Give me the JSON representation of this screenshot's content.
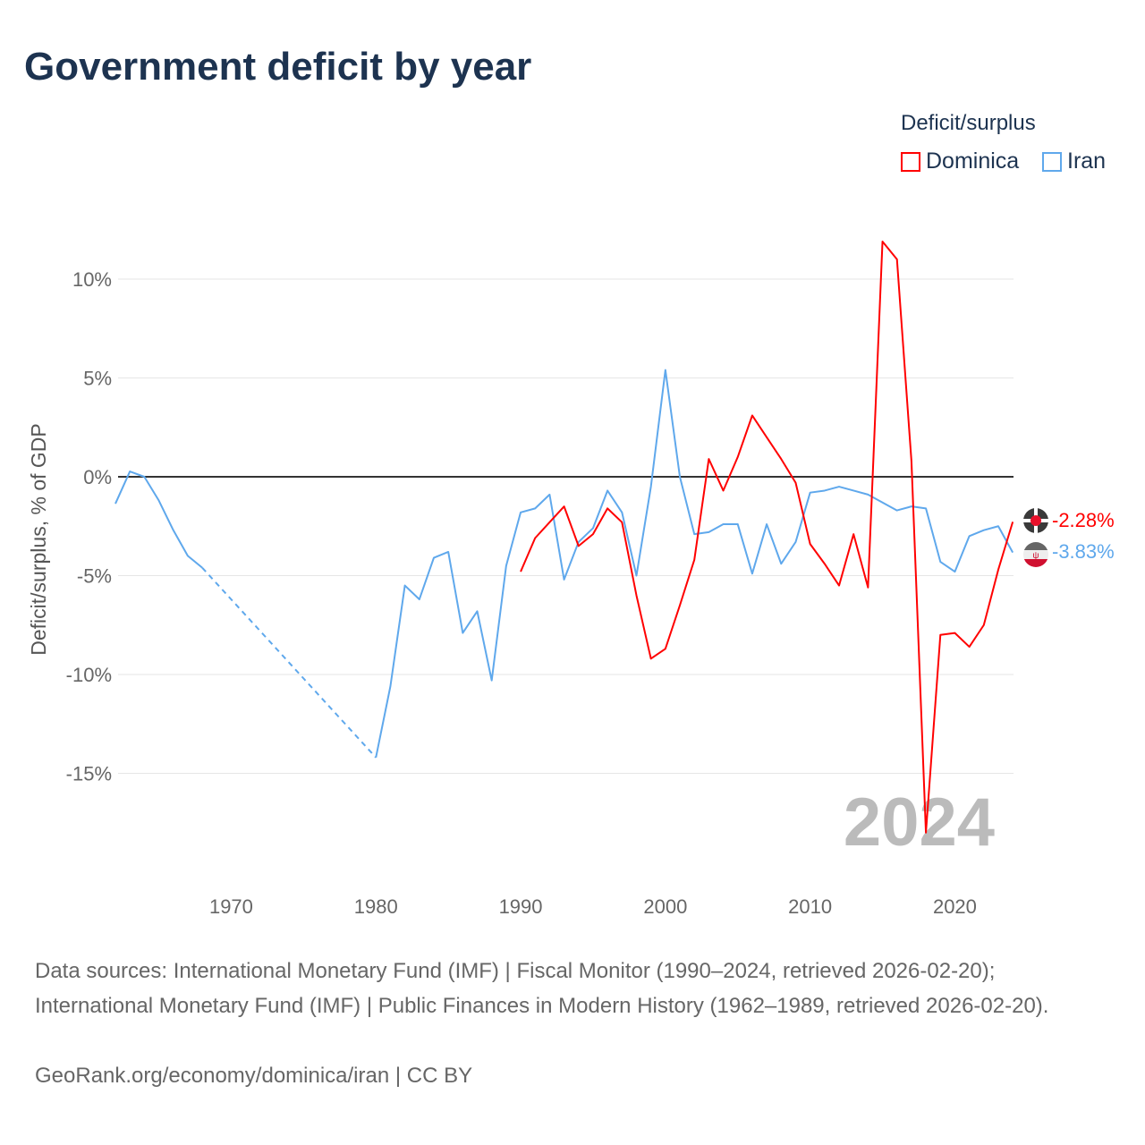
{
  "title": "Government deficit by year",
  "legend": {
    "title": "Deficit/surplus",
    "items": [
      {
        "name": "Dominica",
        "color": "#ff0000"
      },
      {
        "name": "Iran",
        "color": "#5fa8ec"
      }
    ]
  },
  "watermark_year": "2024",
  "end_labels": {
    "dominica": "-2.28%",
    "iran": "-3.83%"
  },
  "footer": {
    "sources": "Data sources: International Monetary Fund (IMF) | Fiscal Monitor (1990–2024, retrieved 2026-02-20); International Monetary Fund (IMF) | Public Finances in Modern History (1962–1989, retrieved 2026-02-20).",
    "credit": "GeoRank.org/economy/dominica/iran | CC BY"
  },
  "chart_data": {
    "type": "line",
    "title": "Government deficit by year",
    "ylabel": "Deficit/surplus, % of GDP",
    "xlabel": "",
    "xlim": [
      1962,
      2024
    ],
    "ylim": [
      -18.5,
      12.5
    ],
    "xticks": [
      1970,
      1980,
      1990,
      2000,
      2010,
      2020
    ],
    "xtick_labels": [
      "1970",
      "1980",
      "1990",
      "2000",
      "2010",
      "2020"
    ],
    "yticks": [
      10,
      5,
      0,
      -5,
      -10,
      -15
    ],
    "ytick_labels": [
      "10%",
      "5%",
      "0%",
      "-5%",
      "-10%",
      "-15%"
    ],
    "grid": true,
    "legend_position": "top-right",
    "series": [
      {
        "name": "Dominica",
        "color": "#ff0000",
        "start_year": 1990,
        "values": [
          -4.8,
          -3.1,
          -2.3,
          -1.5,
          -3.5,
          -2.9,
          -1.6,
          -2.3,
          -6.0,
          -9.2,
          -8.7,
          -6.5,
          -4.2,
          0.9,
          -0.7,
          1.0,
          3.1,
          2.0,
          0.9,
          -0.3,
          -3.4,
          -4.4,
          -5.5,
          -2.9,
          -5.6,
          11.9,
          11.0,
          0.8,
          -18.0,
          -8.0,
          -7.9,
          -8.6,
          -7.5,
          -4.7,
          -2.28
        ]
      },
      {
        "name": "Iran",
        "color": "#5fa8ec",
        "start_year": 1962,
        "values": [
          -1.36,
          0.27,
          0.0,
          -1.2,
          -2.7,
          -4.0,
          -4.6,
          null,
          null,
          null,
          null,
          null,
          null,
          null,
          null,
          null,
          null,
          null,
          -14.2,
          -10.6,
          -5.5,
          -6.2,
          -4.1,
          -3.8,
          -7.9,
          -6.8,
          -10.3,
          -4.5,
          -1.8,
          -1.6,
          -0.9,
          -5.2,
          -3.3,
          -2.6,
          -0.7,
          -1.8,
          -5.0,
          -0.5,
          5.4,
          0.0,
          -2.9,
          -2.8,
          -2.4,
          -2.4,
          -4.9,
          -2.4,
          -4.4,
          -3.3,
          -0.8,
          -0.7,
          -0.5,
          -0.7,
          -0.9,
          -1.3,
          -1.7,
          -1.5,
          -1.6,
          -4.3,
          -4.8,
          -3.0,
          -2.7,
          -2.5,
          -3.83
        ]
      }
    ]
  }
}
